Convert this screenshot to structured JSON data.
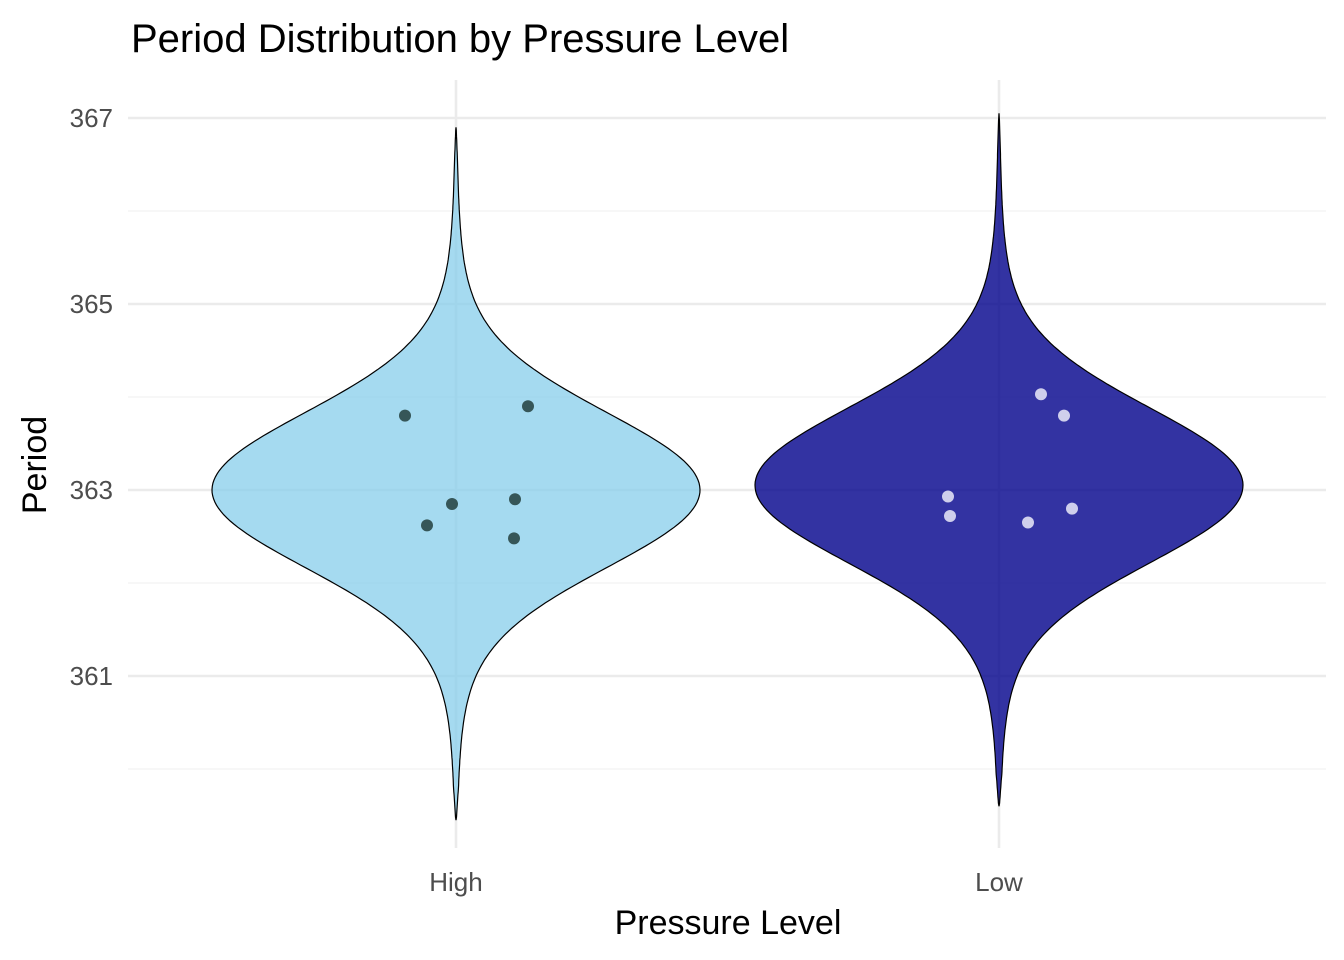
{
  "chart_data": {
    "type": "violin",
    "title": "Period Distribution by Pressure Level",
    "xlabel": "Pressure Level",
    "ylabel": "Period",
    "categories": [
      "High",
      "Low"
    ],
    "y_ticks": [
      361,
      363,
      365,
      367
    ],
    "y_minor_ticks": [
      360,
      362,
      364,
      366
    ],
    "ylim": [
      359.6,
      367.4
    ],
    "grid": true,
    "legend": "none",
    "series": [
      {
        "category": "High",
        "fill": "#87CEEB",
        "fill_opacity": 0.75,
        "point_color": "#2F4F4F",
        "violin_range": [
          359.45,
          366.9
        ],
        "violin_center": 363.0,
        "points": [
          363.8,
          363.9,
          362.85,
          362.9,
          362.62,
          362.48
        ]
      },
      {
        "category": "Low",
        "fill": "#00008B",
        "fill_opacity": 0.8,
        "point_color": "#D8D8F0",
        "violin_range": [
          359.6,
          367.05
        ],
        "violin_center": 363.05,
        "points": [
          364.03,
          363.8,
          362.93,
          362.72,
          362.8,
          362.65
        ]
      }
    ]
  }
}
